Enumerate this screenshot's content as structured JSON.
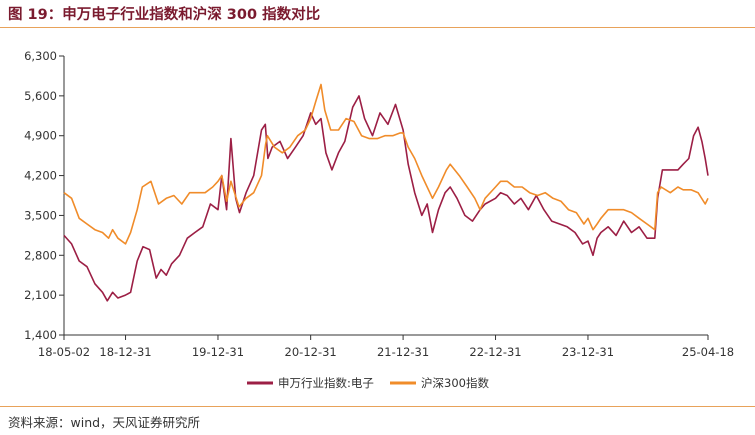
{
  "header": {
    "title": "图 19：申万电子行业指数和沪深 300 指数对比"
  },
  "footer": {
    "source": "资料来源：wind，天风证券研究所"
  },
  "chart_data": {
    "type": "line",
    "title": "图 19：申万电子行业指数和沪深 300 指数对比",
    "xlabel": "",
    "ylabel": "",
    "ylim": [
      1400,
      6300
    ],
    "yticks": [
      1400,
      2100,
      2800,
      3500,
      4200,
      4900,
      5600,
      6300
    ],
    "ytick_labels": [
      "1,400",
      "2,100",
      "2,800",
      "3,500",
      "4,200",
      "4,900",
      "5,600",
      "6,300"
    ],
    "xlim": [
      "2018-05-02",
      "2025-04-18"
    ],
    "xticks": [
      "2018-05-02",
      "2018-12-31",
      "2019-12-31",
      "2020-12-31",
      "2021-12-31",
      "2022-12-31",
      "2023-12-31",
      "2025-04-18"
    ],
    "xtick_labels": [
      "18-05-02",
      "18-12-31",
      "19-12-31",
      "20-12-31",
      "21-12-31",
      "22-12-31",
      "23-12-31",
      "25-04-18"
    ],
    "grid": false,
    "legend": "bottom",
    "series": [
      {
        "name": "申万行业指数:电子",
        "color": "#9c1f45",
        "x": [
          "2018-05-02",
          "2018-06-01",
          "2018-07-01",
          "2018-08-01",
          "2018-09-01",
          "2018-10-01",
          "2018-10-20",
          "2018-11-10",
          "2018-12-01",
          "2018-12-31",
          "2019-01-20",
          "2019-02-15",
          "2019-03-10",
          "2019-04-05",
          "2019-05-01",
          "2019-05-20",
          "2019-06-10",
          "2019-07-01",
          "2019-08-01",
          "2019-09-01",
          "2019-10-01",
          "2019-11-01",
          "2019-12-01",
          "2019-12-31",
          "2020-01-15",
          "2020-02-03",
          "2020-02-20",
          "2020-03-10",
          "2020-03-25",
          "2020-04-20",
          "2020-05-20",
          "2020-06-20",
          "2020-07-05",
          "2020-07-15",
          "2020-08-01",
          "2020-09-01",
          "2020-10-01",
          "2020-11-01",
          "2020-12-01",
          "2020-12-31",
          "2021-01-20",
          "2021-02-10",
          "2021-03-01",
          "2021-03-25",
          "2021-04-20",
          "2021-05-15",
          "2021-06-15",
          "2021-07-10",
          "2021-08-01",
          "2021-09-01",
          "2021-10-01",
          "2021-11-01",
          "2021-12-01",
          "2021-12-31",
          "2022-01-20",
          "2022-02-15",
          "2022-03-15",
          "2022-04-05",
          "2022-04-26",
          "2022-05-20",
          "2022-06-15",
          "2022-07-05",
          "2022-08-01",
          "2022-09-01",
          "2022-10-01",
          "2022-10-31",
          "2022-11-20",
          "2022-12-31",
          "2023-01-20",
          "2023-02-15",
          "2023-03-15",
          "2023-04-10",
          "2023-05-10",
          "2023-06-10",
          "2023-07-10",
          "2023-08-10",
          "2023-09-10",
          "2023-10-10",
          "2023-11-10",
          "2023-12-10",
          "2023-12-31",
          "2024-01-20",
          "2024-02-05",
          "2024-02-20",
          "2024-03-20",
          "2024-04-20",
          "2024-05-20",
          "2024-06-20",
          "2024-07-20",
          "2024-08-20",
          "2024-09-20",
          "2024-10-01",
          "2024-10-20",
          "2024-11-20",
          "2024-12-20",
          "2025-01-10",
          "2025-02-01",
          "2025-02-20",
          "2025-03-10",
          "2025-03-25",
          "2025-04-07",
          "2025-04-18"
        ],
        "values": [
          3150,
          3000,
          2700,
          2600,
          2300,
          2150,
          2000,
          2150,
          2050,
          2100,
          2150,
          2700,
          2950,
          2900,
          2400,
          2550,
          2450,
          2650,
          2800,
          3100,
          3200,
          3300,
          3700,
          3600,
          4200,
          3600,
          4850,
          3800,
          3550,
          3900,
          4200,
          5000,
          5100,
          4500,
          4700,
          4800,
          4500,
          4700,
          4900,
          5300,
          5100,
          5200,
          4600,
          4300,
          4600,
          4800,
          5400,
          5600,
          5200,
          4900,
          5300,
          5100,
          5450,
          5000,
          4400,
          3900,
          3500,
          3700,
          3200,
          3600,
          3900,
          4000,
          3800,
          3500,
          3400,
          3600,
          3700,
          3800,
          3900,
          3850,
          3700,
          3800,
          3600,
          3850,
          3600,
          3400,
          3350,
          3300,
          3200,
          3000,
          3050,
          2800,
          3100,
          3200,
          3300,
          3150,
          3400,
          3200,
          3300,
          3100,
          3100,
          3800,
          4300,
          4300,
          4300,
          4400,
          4500,
          4900,
          5050,
          4800,
          4500,
          4200
        ]
      },
      {
        "name": "沪深300指数",
        "color": "#f08c2a",
        "x": [
          "2018-05-02",
          "2018-06-01",
          "2018-07-01",
          "2018-08-01",
          "2018-09-01",
          "2018-10-01",
          "2018-10-25",
          "2018-11-10",
          "2018-12-01",
          "2018-12-31",
          "2019-01-20",
          "2019-02-15",
          "2019-03-07",
          "2019-04-10",
          "2019-05-10",
          "2019-06-10",
          "2019-07-10",
          "2019-08-10",
          "2019-09-10",
          "2019-10-10",
          "2019-11-10",
          "2019-12-10",
          "2019-12-31",
          "2020-01-15",
          "2020-02-03",
          "2020-02-20",
          "2020-03-23",
          "2020-04-20",
          "2020-05-20",
          "2020-06-20",
          "2020-07-06",
          "2020-07-13",
          "2020-08-10",
          "2020-09-10",
          "2020-10-10",
          "2020-11-10",
          "2020-12-10",
          "2020-12-31",
          "2021-01-20",
          "2021-02-10",
          "2021-02-25",
          "2021-03-20",
          "2021-04-20",
          "2021-05-20",
          "2021-06-20",
          "2021-07-20",
          "2021-08-20",
          "2021-09-20",
          "2021-10-20",
          "2021-11-20",
          "2021-12-20",
          "2021-12-31",
          "2022-01-20",
          "2022-02-15",
          "2022-03-15",
          "2022-04-26",
          "2022-05-20",
          "2022-06-20",
          "2022-07-05",
          "2022-08-10",
          "2022-09-10",
          "2022-10-10",
          "2022-10-31",
          "2022-11-20",
          "2022-12-31",
          "2023-01-20",
          "2023-02-15",
          "2023-03-15",
          "2023-04-15",
          "2023-05-15",
          "2023-06-15",
          "2023-07-15",
          "2023-08-15",
          "2023-09-15",
          "2023-10-15",
          "2023-11-15",
          "2023-12-15",
          "2023-12-31",
          "2024-01-20",
          "2024-02-05",
          "2024-02-20",
          "2024-03-20",
          "2024-04-20",
          "2024-05-20",
          "2024-06-20",
          "2024-07-20",
          "2024-08-20",
          "2024-09-20",
          "2024-10-01",
          "2024-10-15",
          "2024-11-20",
          "2024-12-20",
          "2025-01-10",
          "2025-02-10",
          "2025-03-10",
          "2025-04-07",
          "2025-04-18"
        ],
        "values": [
          3900,
          3800,
          3450,
          3350,
          3250,
          3200,
          3100,
          3250,
          3100,
          3000,
          3200,
          3600,
          4000,
          4100,
          3700,
          3800,
          3850,
          3700,
          3900,
          3900,
          3900,
          4000,
          4100,
          4200,
          3750,
          4100,
          3650,
          3800,
          3900,
          4200,
          4750,
          4900,
          4700,
          4600,
          4700,
          4900,
          5000,
          5200,
          5500,
          5800,
          5350,
          5000,
          5000,
          5200,
          5150,
          4900,
          4850,
          4850,
          4900,
          4900,
          4950,
          4950,
          4700,
          4500,
          4200,
          3800,
          4000,
          4300,
          4400,
          4200,
          4000,
          3800,
          3600,
          3800,
          4000,
          4100,
          4100,
          4000,
          4000,
          3900,
          3850,
          3900,
          3800,
          3750,
          3600,
          3550,
          3350,
          3450,
          3250,
          3350,
          3450,
          3600,
          3600,
          3600,
          3550,
          3450,
          3350,
          3250,
          3900,
          4000,
          3900,
          4000,
          3950,
          3950,
          3900,
          3700,
          3800
        ]
      }
    ]
  }
}
